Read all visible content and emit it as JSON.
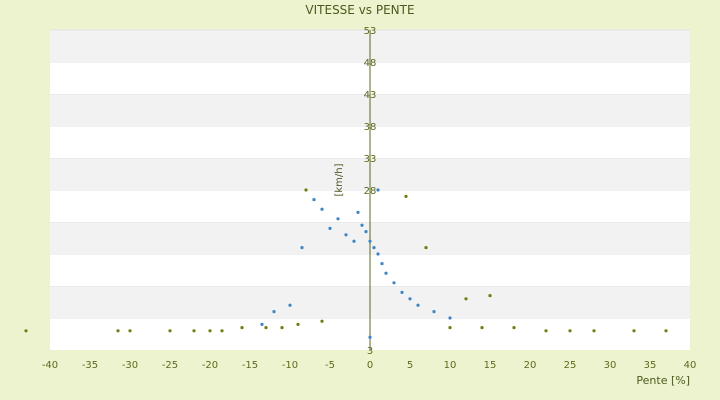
{
  "chart_data": {
    "type": "scatter",
    "title": "VITESSE vs PENTE",
    "xlabel": "Pente [%]",
    "ylabel": "[km/h]",
    "xlim": [
      -40,
      40
    ],
    "ylim": [
      3,
      53
    ],
    "x_ticks": [
      -40,
      -35,
      -30,
      -25,
      -20,
      -15,
      -10,
      -5,
      0,
      5,
      10,
      15,
      20,
      25,
      30,
      35,
      40
    ],
    "y_ticks": [
      3,
      8,
      13,
      18,
      23,
      28,
      33,
      38,
      43,
      48,
      53
    ],
    "y_tick_labels_shown": [
      3,
      28,
      33,
      38,
      43,
      48,
      53
    ],
    "grid": "horizontal bands",
    "legend": "none",
    "series": [
      {
        "color": "#3c86c8",
        "description_points": [
          {
            "x": -8.5,
            "y": 19.0
          },
          {
            "x": -7.0,
            "y": 26.5
          },
          {
            "x": -6.0,
            "y": 25.0
          },
          {
            "x": -5.0,
            "y": 22.0
          },
          {
            "x": -4.0,
            "y": 23.5
          },
          {
            "x": -3.0,
            "y": 21.0
          },
          {
            "x": -2.0,
            "y": 20.0
          },
          {
            "x": -1.5,
            "y": 24.5
          },
          {
            "x": -1.0,
            "y": 22.5
          },
          {
            "x": -0.5,
            "y": 21.5
          },
          {
            "x": 0.0,
            "y": 20.0
          },
          {
            "x": 0.5,
            "y": 19.0
          },
          {
            "x": 1.0,
            "y": 18.0
          },
          {
            "x": 1.5,
            "y": 16.5
          },
          {
            "x": 2.0,
            "y": 15.0
          },
          {
            "x": 3.0,
            "y": 13.5
          },
          {
            "x": 4.0,
            "y": 12.0
          },
          {
            "x": 5.0,
            "y": 11.0
          },
          {
            "x": 6.0,
            "y": 10.0
          },
          {
            "x": 8.0,
            "y": 9.0
          },
          {
            "x": 10.0,
            "y": 8.0
          },
          {
            "x": -10.0,
            "y": 10.0
          },
          {
            "x": -12.0,
            "y": 9.0
          },
          {
            "x": -13.5,
            "y": 7.0
          },
          {
            "x": 0.0,
            "y": 5.0
          },
          {
            "x": 1.0,
            "y": 28.0
          }
        ]
      },
      {
        "color": "#6e7d10",
        "description_points": [
          {
            "x": -43.0,
            "y": 6.0
          },
          {
            "x": -31.5,
            "y": 6.0
          },
          {
            "x": -30.0,
            "y": 6.0
          },
          {
            "x": -25.0,
            "y": 6.0
          },
          {
            "x": -22.0,
            "y": 6.0
          },
          {
            "x": -20.0,
            "y": 6.0
          },
          {
            "x": -18.5,
            "y": 6.0
          },
          {
            "x": -16.0,
            "y": 6.5
          },
          {
            "x": -13.0,
            "y": 6.5
          },
          {
            "x": -11.0,
            "y": 6.5
          },
          {
            "x": -9.0,
            "y": 7.0
          },
          {
            "x": -6.0,
            "y": 7.5
          },
          {
            "x": 10.0,
            "y": 6.5
          },
          {
            "x": 14.0,
            "y": 6.5
          },
          {
            "x": 18.0,
            "y": 6.5
          },
          {
            "x": 22.0,
            "y": 6.0
          },
          {
            "x": 25.0,
            "y": 6.0
          },
          {
            "x": 28.0,
            "y": 6.0
          },
          {
            "x": 33.0,
            "y": 6.0
          },
          {
            "x": 37.0,
            "y": 6.0
          },
          {
            "x": -8.0,
            "y": 28.0
          },
          {
            "x": 4.5,
            "y": 27.0
          },
          {
            "x": 7.0,
            "y": 19.0
          },
          {
            "x": 12.0,
            "y": 11.0
          },
          {
            "x": 15.0,
            "y": 11.5
          }
        ]
      }
    ]
  }
}
